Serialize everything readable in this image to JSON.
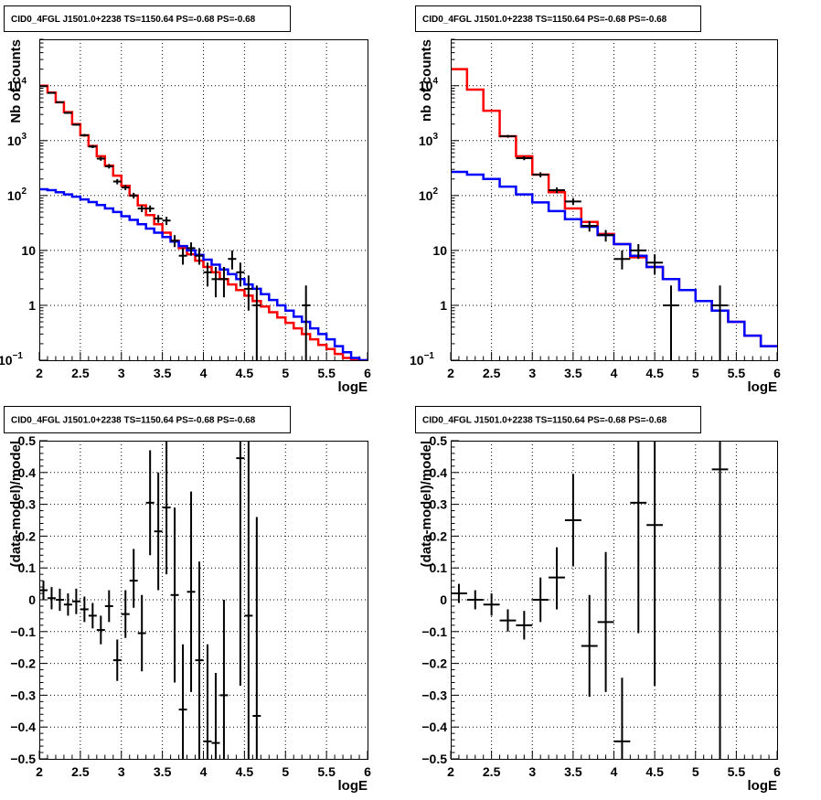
{
  "chart_data": [
    {
      "type": "line",
      "title": "CID0_4FGL J1501.0+2238 TS=1150.64 PS=-0.68 PS=-0.68",
      "xlabel": "logE",
      "ylabel": "Nb of counts",
      "xlim": [
        2,
        6
      ],
      "ylim": [
        0.1,
        70000
      ],
      "yscale": "log",
      "grid": true,
      "xticks": [
        "2",
        "2.5",
        "3",
        "3.5",
        "4",
        "4.5",
        "5",
        "5.5",
        "6"
      ],
      "yticks": [
        {
          "value": 0.1,
          "label": "10",
          "exp": "−1"
        },
        {
          "value": 1,
          "label": "1",
          "exp": ""
        },
        {
          "value": 10,
          "label": "10",
          "exp": ""
        },
        {
          "value": 100,
          "label": "10",
          "exp": "2"
        },
        {
          "value": 1000,
          "label": "10",
          "exp": "3"
        },
        {
          "value": 10000,
          "label": "10",
          "exp": "4"
        }
      ],
      "bin_edges": [
        2.0,
        2.1,
        2.2,
        2.3,
        2.4,
        2.5,
        2.6,
        2.7,
        2.8,
        2.9,
        3.0,
        3.1,
        3.2,
        3.3,
        3.4,
        3.5,
        3.6,
        3.7,
        3.8,
        3.9,
        4.0,
        4.1,
        4.2,
        4.3,
        4.4,
        4.5,
        4.6,
        4.7,
        4.8,
        4.9,
        5.0,
        5.1,
        5.2,
        5.3,
        5.4,
        5.5,
        5.6,
        5.7,
        5.8,
        5.9,
        6.0
      ],
      "series": [
        {
          "style": "step",
          "color": "#ff0000",
          "values": [
            10000,
            7500,
            5000,
            3300,
            2000,
            1250,
            800,
            520,
            350,
            230,
            150,
            100,
            66,
            44,
            30,
            21,
            15,
            11,
            8.5,
            6.5,
            5.0,
            4.0,
            3.0,
            2.4,
            1.9,
            1.5,
            1.2,
            0.95,
            0.75,
            0.6,
            0.48,
            0.38,
            0.3,
            0.24,
            0.19,
            0.16,
            0.13,
            0.11,
            0.09,
            0.08
          ]
        },
        {
          "style": "step",
          "color": "#0000ff",
          "values": [
            130,
            125,
            115,
            105,
            95,
            85,
            76,
            67,
            58,
            50,
            42,
            36,
            30,
            25,
            21,
            17.5,
            14.5,
            12,
            10,
            8.3,
            6.8,
            5.5,
            4.5,
            3.7,
            3.0,
            2.4,
            2.0,
            1.6,
            1.25,
            1.0,
            0.8,
            0.62,
            0.5,
            0.38,
            0.3,
            0.24,
            0.18,
            0.14,
            0.11,
            0.09
          ]
        },
        {
          "style": "errorbar",
          "color": "#000000",
          "points": [
            {
              "x": 2.05,
              "y": 9800,
              "ylo": 9600,
              "yhi": 10000
            },
            {
              "x": 2.15,
              "y": 7400,
              "ylo": 7200,
              "yhi": 7600
            },
            {
              "x": 2.25,
              "y": 5000,
              "ylo": 4850,
              "yhi": 5150
            },
            {
              "x": 2.35,
              "y": 3200,
              "ylo": 3100,
              "yhi": 3300
            },
            {
              "x": 2.45,
              "y": 1950,
              "ylo": 1870,
              "yhi": 2030
            },
            {
              "x": 2.55,
              "y": 1250,
              "ylo": 1180,
              "yhi": 1320
            },
            {
              "x": 2.65,
              "y": 780,
              "ylo": 730,
              "yhi": 830
            },
            {
              "x": 2.75,
              "y": 470,
              "ylo": 430,
              "yhi": 510
            },
            {
              "x": 2.85,
              "y": 340,
              "ylo": 310,
              "yhi": 375
            },
            {
              "x": 2.95,
              "y": 180,
              "ylo": 160,
              "yhi": 200
            },
            {
              "x": 3.05,
              "y": 140,
              "ylo": 125,
              "yhi": 155
            },
            {
              "x": 3.15,
              "y": 100,
              "ylo": 88,
              "yhi": 112
            },
            {
              "x": 3.25,
              "y": 58,
              "ylo": 50,
              "yhi": 66
            },
            {
              "x": 3.35,
              "y": 58,
              "ylo": 50,
              "yhi": 66
            },
            {
              "x": 3.45,
              "y": 38,
              "ylo": 32,
              "yhi": 44
            },
            {
              "x": 3.55,
              "y": 35,
              "ylo": 29,
              "yhi": 41
            },
            {
              "x": 3.65,
              "y": 15,
              "ylo": 11.5,
              "yhi": 19
            },
            {
              "x": 3.75,
              "y": 8,
              "ylo": 5.5,
              "yhi": 11
            },
            {
              "x": 3.85,
              "y": 11,
              "ylo": 8,
              "yhi": 14
            },
            {
              "x": 3.95,
              "y": 8,
              "ylo": 5.5,
              "yhi": 11
            },
            {
              "x": 4.05,
              "y": 4,
              "ylo": 2.2,
              "yhi": 6
            },
            {
              "x": 4.15,
              "y": 3,
              "ylo": 1.4,
              "yhi": 5
            },
            {
              "x": 4.25,
              "y": 3,
              "ylo": 1.4,
              "yhi": 5
            },
            {
              "x": 4.35,
              "y": 7,
              "ylo": 4.5,
              "yhi": 10
            },
            {
              "x": 4.45,
              "y": 4,
              "ylo": 2.2,
              "yhi": 6
            },
            {
              "x": 4.55,
              "y": 2,
              "ylo": 0.8,
              "yhi": 3.5
            },
            {
              "x": 4.65,
              "y": 1,
              "ylo": 0.1,
              "yhi": 2.3
            },
            {
              "x": 5.25,
              "y": 1,
              "ylo": 0.1,
              "yhi": 2.3
            }
          ]
        }
      ]
    },
    {
      "type": "line",
      "title": "CID0_4FGL J1501.0+2238 TS=1150.64 PS=-0.68 PS=-0.68",
      "xlabel": "logE",
      "ylabel": "nb of counts",
      "xlim": [
        2,
        6
      ],
      "ylim": [
        0.1,
        70000
      ],
      "yscale": "log",
      "grid": true,
      "xticks": [
        "2",
        "2.5",
        "3",
        "3.5",
        "4",
        "4.5",
        "5",
        "5.5",
        "6"
      ],
      "yticks": [
        {
          "value": 0.1,
          "label": "10",
          "exp": "−1"
        },
        {
          "value": 1,
          "label": "1",
          "exp": ""
        },
        {
          "value": 10,
          "label": "10",
          "exp": ""
        },
        {
          "value": 100,
          "label": "10",
          "exp": "2"
        },
        {
          "value": 1000,
          "label": "10",
          "exp": "3"
        },
        {
          "value": 10000,
          "label": "10",
          "exp": "4"
        }
      ],
      "bin_edges": [
        2.0,
        2.2,
        2.4,
        2.6,
        2.8,
        3.0,
        3.2,
        3.4,
        3.6,
        3.8,
        4.0,
        4.2,
        4.4,
        4.6,
        4.8,
        5.0,
        5.2,
        5.4,
        5.6,
        5.8,
        6.0
      ],
      "series": [
        {
          "style": "step",
          "color": "#ff0000",
          "values": [
            20000,
            8500,
            3500,
            1200,
            520,
            240,
            115,
            58,
            33,
            20,
            13,
            7.5,
            5,
            3,
            1.9,
            1.2,
            0.8,
            0.5,
            0.28,
            0.18
          ]
        },
        {
          "style": "step",
          "color": "#0000ff",
          "values": [
            270,
            240,
            200,
            145,
            105,
            75,
            52,
            37,
            27,
            19,
            13,
            8,
            5,
            3,
            1.9,
            1.2,
            0.8,
            0.5,
            0.28,
            0.18
          ]
        },
        {
          "style": "errorbar",
          "color": "#000000",
          "points": [
            {
              "x": 2.7,
              "y": 1200,
              "ylo": 1130,
              "yhi": 1270
            },
            {
              "x": 2.9,
              "y": 480,
              "ylo": 440,
              "yhi": 520
            },
            {
              "x": 3.1,
              "y": 240,
              "ylo": 215,
              "yhi": 265
            },
            {
              "x": 3.3,
              "y": 125,
              "ylo": 110,
              "yhi": 140
            },
            {
              "x": 3.5,
              "y": 78,
              "ylo": 67,
              "yhi": 89
            },
            {
              "x": 3.7,
              "y": 28,
              "ylo": 22,
              "yhi": 34
            },
            {
              "x": 3.9,
              "y": 19,
              "ylo": 14.5,
              "yhi": 23.5
            },
            {
              "x": 4.1,
              "y": 7,
              "ylo": 4.5,
              "yhi": 10
            },
            {
              "x": 4.3,
              "y": 10,
              "ylo": 7,
              "yhi": 13
            },
            {
              "x": 4.5,
              "y": 6,
              "ylo": 3.6,
              "yhi": 8.5
            },
            {
              "x": 4.7,
              "y": 1,
              "ylo": 0.1,
              "yhi": 2.3
            },
            {
              "x": 5.3,
              "y": 1,
              "ylo": 0.1,
              "yhi": 2.3
            }
          ]
        }
      ]
    },
    {
      "type": "scatter",
      "title": "CID0_4FGL J1501.0+2238 TS=1150.64 PS=-0.68 PS=-0.68",
      "xlabel": "logE",
      "ylabel": "(data-model)/model",
      "xlim": [
        2,
        6
      ],
      "ylim": [
        -0.5,
        0.5
      ],
      "yscale": "linear",
      "grid": true,
      "xticks": [
        "2",
        "2.5",
        "3",
        "3.5",
        "4",
        "4.5",
        "5",
        "5.5",
        "6"
      ],
      "yticks": [
        {
          "value": -0.5,
          "label": "−0.5",
          "exp": ""
        },
        {
          "value": -0.4,
          "label": "−0.4",
          "exp": ""
        },
        {
          "value": -0.3,
          "label": "−0.3",
          "exp": ""
        },
        {
          "value": -0.2,
          "label": "−0.2",
          "exp": ""
        },
        {
          "value": -0.1,
          "label": "−0.1",
          "exp": ""
        },
        {
          "value": 0,
          "label": "0",
          "exp": ""
        },
        {
          "value": 0.1,
          "label": "0.1",
          "exp": ""
        },
        {
          "value": 0.2,
          "label": "0.2",
          "exp": ""
        },
        {
          "value": 0.3,
          "label": "0.3",
          "exp": ""
        },
        {
          "value": 0.4,
          "label": "0.4",
          "exp": ""
        },
        {
          "value": 0.5,
          "label": "0.5",
          "exp": ""
        }
      ],
      "series": [
        {
          "style": "errorbar",
          "color": "#000000",
          "halfwidth": 0.05,
          "points": [
            {
              "x": 2.05,
              "y": 0.03,
              "ylo": 0.0,
              "yhi": 0.06
            },
            {
              "x": 2.15,
              "y": 0.005,
              "ylo": -0.03,
              "yhi": 0.04
            },
            {
              "x": 2.25,
              "y": 0.0,
              "ylo": -0.035,
              "yhi": 0.035
            },
            {
              "x": 2.35,
              "y": -0.015,
              "ylo": -0.05,
              "yhi": 0.02
            },
            {
              "x": 2.45,
              "y": -0.005,
              "ylo": -0.045,
              "yhi": 0.035
            },
            {
              "x": 2.55,
              "y": -0.03,
              "ylo": -0.07,
              "yhi": 0.01
            },
            {
              "x": 2.65,
              "y": -0.05,
              "ylo": -0.09,
              "yhi": -0.01
            },
            {
              "x": 2.75,
              "y": -0.095,
              "ylo": -0.14,
              "yhi": -0.05
            },
            {
              "x": 2.85,
              "y": -0.02,
              "ylo": -0.07,
              "yhi": 0.03
            },
            {
              "x": 2.95,
              "y": -0.19,
              "ylo": -0.255,
              "yhi": -0.125
            },
            {
              "x": 3.05,
              "y": -0.045,
              "ylo": -0.12,
              "yhi": 0.03
            },
            {
              "x": 3.15,
              "y": 0.06,
              "ylo": -0.025,
              "yhi": 0.16
            },
            {
              "x": 3.25,
              "y": -0.105,
              "ylo": -0.225,
              "yhi": 0.015
            },
            {
              "x": 3.35,
              "y": 0.305,
              "ylo": 0.14,
              "yhi": 0.47
            },
            {
              "x": 3.45,
              "y": 0.215,
              "ylo": 0.03,
              "yhi": 0.4
            },
            {
              "x": 3.55,
              "y": 0.29,
              "ylo": 0.08,
              "yhi": 0.5
            },
            {
              "x": 3.65,
              "y": 0.015,
              "ylo": -0.26,
              "yhi": 0.29
            },
            {
              "x": 3.75,
              "y": -0.345,
              "ylo": -0.5,
              "yhi": -0.14
            },
            {
              "x": 3.85,
              "y": 0.025,
              "ylo": -0.29,
              "yhi": 0.34
            },
            {
              "x": 3.95,
              "y": -0.19,
              "ylo": -0.5,
              "yhi": 0.12
            },
            {
              "x": 4.05,
              "y": -0.445,
              "ylo": -0.5,
              "yhi": -0.14
            },
            {
              "x": 4.15,
              "y": -0.45,
              "ylo": -0.5,
              "yhi": -0.23
            },
            {
              "x": 4.25,
              "y": -0.3,
              "ylo": -0.5,
              "yhi": 0.0
            },
            {
              "x": 4.45,
              "y": 0.445,
              "ylo": -0.27,
              "yhi": 0.5
            },
            {
              "x": 4.55,
              "y": -0.05,
              "ylo": -0.5,
              "yhi": 0.5
            },
            {
              "x": 4.65,
              "y": -0.365,
              "ylo": -0.5,
              "yhi": 0.26
            }
          ]
        }
      ]
    },
    {
      "type": "scatter",
      "title": "CID0_4FGL J1501.0+2238 TS=1150.64 PS=-0.68 PS=-0.68",
      "xlabel": "logE",
      "ylabel": "(data-model)/model",
      "xlim": [
        2,
        6
      ],
      "ylim": [
        -0.5,
        0.5
      ],
      "yscale": "linear",
      "grid": true,
      "xticks": [
        "2",
        "2.5",
        "3",
        "3.5",
        "4",
        "4.5",
        "5",
        "5.5",
        "6"
      ],
      "yticks": [
        {
          "value": -0.5,
          "label": "−0.5",
          "exp": ""
        },
        {
          "value": -0.4,
          "label": "−0.4",
          "exp": ""
        },
        {
          "value": -0.3,
          "label": "−0.3",
          "exp": ""
        },
        {
          "value": -0.2,
          "label": "−0.2",
          "exp": ""
        },
        {
          "value": -0.1,
          "label": "−0.1",
          "exp": ""
        },
        {
          "value": 0,
          "label": "0",
          "exp": ""
        },
        {
          "value": 0.1,
          "label": "0.1",
          "exp": ""
        },
        {
          "value": 0.2,
          "label": "0.2",
          "exp": ""
        },
        {
          "value": 0.3,
          "label": "0.3",
          "exp": ""
        },
        {
          "value": 0.4,
          "label": "0.4",
          "exp": ""
        },
        {
          "value": 0.5,
          "label": "0.5",
          "exp": ""
        }
      ],
      "series": [
        {
          "style": "errorbar",
          "color": "#000000",
          "halfwidth": 0.1,
          "points": [
            {
              "x": 2.1,
              "y": 0.02,
              "ylo": -0.01,
              "yhi": 0.05
            },
            {
              "x": 2.3,
              "y": 0.0,
              "ylo": -0.03,
              "yhi": 0.03
            },
            {
              "x": 2.5,
              "y": -0.015,
              "ylo": -0.05,
              "yhi": 0.02
            },
            {
              "x": 2.7,
              "y": -0.065,
              "ylo": -0.1,
              "yhi": -0.03
            },
            {
              "x": 2.9,
              "y": -0.08,
              "ylo": -0.125,
              "yhi": -0.035
            },
            {
              "x": 3.1,
              "y": -0.0,
              "ylo": -0.07,
              "yhi": 0.07
            },
            {
              "x": 3.3,
              "y": 0.07,
              "ylo": -0.03,
              "yhi": 0.165
            },
            {
              "x": 3.5,
              "y": 0.25,
              "ylo": 0.105,
              "yhi": 0.395
            },
            {
              "x": 3.7,
              "y": -0.145,
              "ylo": -0.305,
              "yhi": 0.015
            },
            {
              "x": 3.9,
              "y": -0.07,
              "ylo": -0.29,
              "yhi": 0.15
            },
            {
              "x": 4.1,
              "y": -0.445,
              "ylo": -0.5,
              "yhi": -0.245
            },
            {
              "x": 4.3,
              "y": 0.305,
              "ylo": -0.105,
              "yhi": 0.5
            },
            {
              "x": 4.5,
              "y": 0.235,
              "ylo": -0.27,
              "yhi": 0.5
            },
            {
              "x": 5.3,
              "y": 0.41,
              "ylo": -0.5,
              "yhi": 0.5
            }
          ]
        }
      ]
    }
  ]
}
